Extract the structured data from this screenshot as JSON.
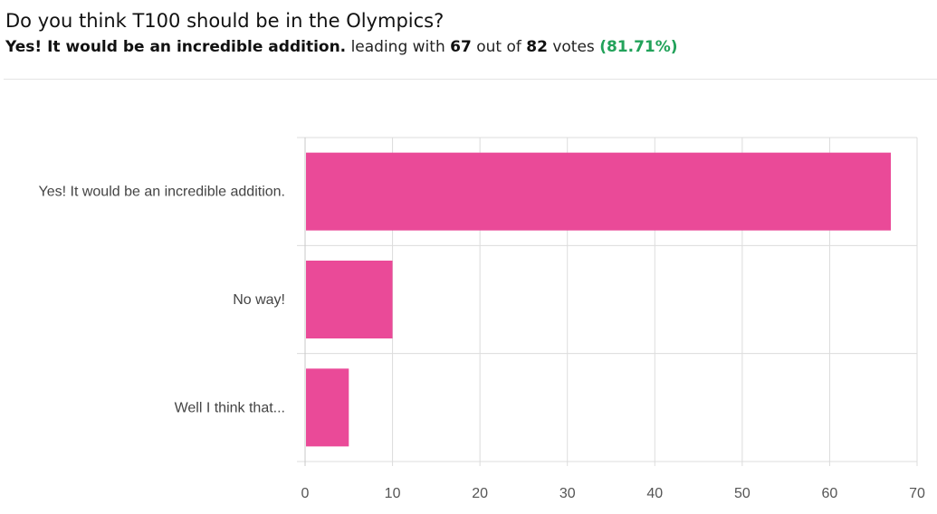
{
  "poll": {
    "question": "Do you think T100 should be in the Olympics?",
    "leader": "Yes! It would be an incredible addition.",
    "leading_with_text": "leading with",
    "leader_votes": "67",
    "out_of_text": "out of",
    "total_votes": "82",
    "votes_text": "votes",
    "percent": "(81.71%)"
  },
  "colors": {
    "bar": "#ea4a98",
    "grid": "#dcdcdc",
    "percent": "#22a25a"
  },
  "chart_data": {
    "type": "bar",
    "orientation": "horizontal",
    "categories": [
      "Yes! It would be an incredible addition.",
      "No way!",
      "Well I think that..."
    ],
    "values": [
      67,
      10,
      5
    ],
    "xlim": [
      0,
      70
    ],
    "xticks": [
      0,
      10,
      20,
      30,
      40,
      50,
      60,
      70
    ],
    "grid": true,
    "title": "",
    "xlabel": "",
    "ylabel": ""
  }
}
